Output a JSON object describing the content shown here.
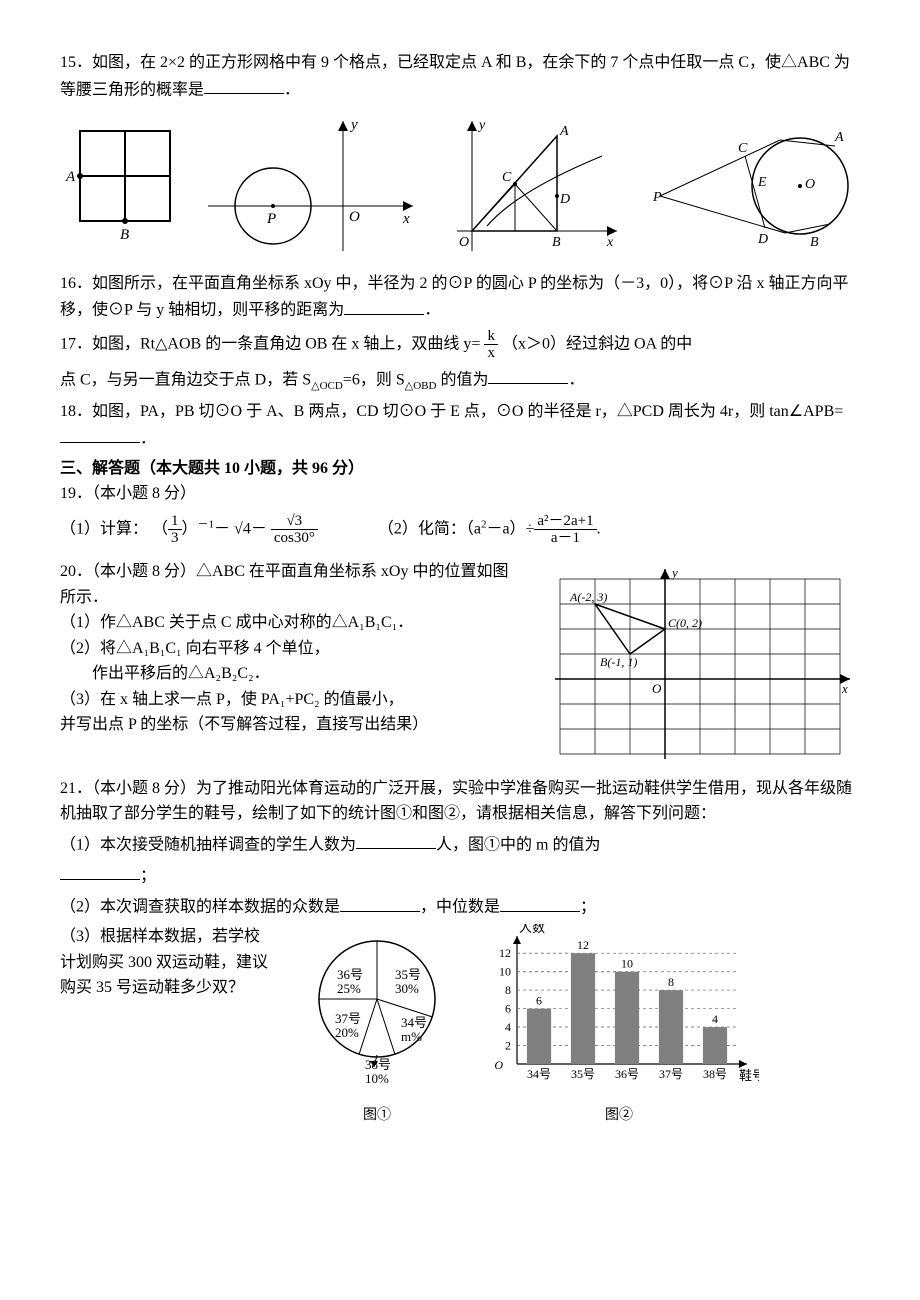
{
  "q15": {
    "text": "15．如图，在 2×2 的正方形网格中有 9 个格点，已经取定点 A 和 B，在余下的 7 个点中任取一点 C，使△ABC 为等腰三角形的概率是",
    "A": "A",
    "B": "B"
  },
  "fig_b": {
    "P": "P",
    "O": "O",
    "x": "x",
    "y": "y"
  },
  "fig_c": {
    "O": "O",
    "A": "A",
    "B": "B",
    "C": "C",
    "D": "D",
    "x": "x",
    "y": "y"
  },
  "fig_d": {
    "P": "P",
    "A": "A",
    "B": "B",
    "C": "C",
    "D": "D",
    "E": "E",
    "O": "O"
  },
  "q16": {
    "pre": "16．如图所示，在平面直角坐标系 xOy 中，半径为 2 的⊙P 的圆心 P 的坐标为（－3，0），将⊙P 沿 x 轴正方向平移，使⊙P 与 y 轴相切，则平移的距离为"
  },
  "q17": {
    "pre": "17．如图，Rt△AOB 的一条直角边 OB 在 x 轴上，双曲线 y=",
    "num": "k",
    "den": "x",
    "mid": "（x＞0）经过斜边 OA 的中",
    "line2a": "点 C，与另一直角边交于点 D，若 S",
    "s1sub": "△OCD",
    "eq": "=6，则 S",
    "s2sub": "△OBD",
    "tail": " 的值为"
  },
  "q18": {
    "pre": "18．如图，PA，PB 切⊙O 于 A、B 两点，CD 切⊙O 于 E 点，⊙O 的半径是 r，△PCD 周长为 4r，则 tan∠APB="
  },
  "section3": "三、解答题（本大题共 10 小题，共 96 分）",
  "q19": {
    "head": "19．（本小题 8 分）",
    "p1a": "（1）计算：  （",
    "f1num": "1",
    "f1den": "3",
    "p1b": "）",
    "exp": "－1",
    "p1c": "－ √4－ ",
    "f2num": "√3",
    "f2den": "cos30°",
    "p2a": "（2）化简：（a",
    "p2sup": "2",
    "p2b": "－a）÷",
    "f3num": "a²－2a+1",
    "f3den": "a－1",
    "p2end": "."
  },
  "q20": {
    "head": "20．（本小题 8 分）△ABC 在平面直角坐标系 xOy 中的位置如图所示．",
    "s1": "（1）作△ABC 关于点 C 成中心对称的△A₁B₁C₁．",
    "s2": "（2）将△A₁B₁C₁ 向右平移 4 个单位，",
    "s2b": "　　作出平移后的△A₂B₂C₂．",
    "s3": "（3）在 x 轴上求一点 P，使 PA₁+PC₂ 的值最小，",
    "s3b": "并写出点 P 的坐标（不写解答过程，直接写出结果）",
    "grid": {
      "A": "A(-2, 3)",
      "B": "B(-1, 1)",
      "C": "C(0, 2)",
      "O": "O",
      "x": "x",
      "y": "y"
    }
  },
  "q21": {
    "head": "21．（本小题 8 分）为了推动阳光体育运动的广泛开展，实验中学准备购买一批运动鞋供学生借用，现从各年级随机抽取了部分学生的鞋号，绘制了如下的统计图①和图②，请根据相关信息，解答下列问题：",
    "s1a": "（1）本次接受随机抽样调查的学生人数为",
    "s1b": "人，图①中的 m 的值为",
    "s2a": "（2）本次调查获取的样本数据的众数是",
    "s2b": "，中位数是",
    "s2c": "；",
    "s3a": "（3）根据样本数据，若学校计划购买 300 双运动鞋，建议购买 35 号运动鞋多少双？",
    "pie": {
      "slices": [
        {
          "label": "36号",
          "pct": "25%",
          "color": "#ffffff"
        },
        {
          "label": "35号",
          "pct": "30%",
          "color": "#ffffff"
        },
        {
          "label": "34号",
          "pct": "m%",
          "color": "#ffffff"
        },
        {
          "label": "38号",
          "pct": "10%",
          "color": "#ffffff"
        },
        {
          "label": "37号",
          "pct": "20%",
          "color": "#ffffff"
        }
      ],
      "caption": "图①"
    },
    "bar": {
      "ylabel": "人数",
      "xlabel": "鞋号",
      "ymax": 13,
      "ytick": 2,
      "categories": [
        "34号",
        "35号",
        "36号",
        "37号",
        "38号"
      ],
      "values": [
        6,
        12,
        10,
        8,
        4
      ],
      "labels": [
        "6",
        "12",
        "10",
        "8",
        "4"
      ],
      "bar_color": "#808080",
      "grid_color": "#808080",
      "caption": "图②"
    }
  }
}
